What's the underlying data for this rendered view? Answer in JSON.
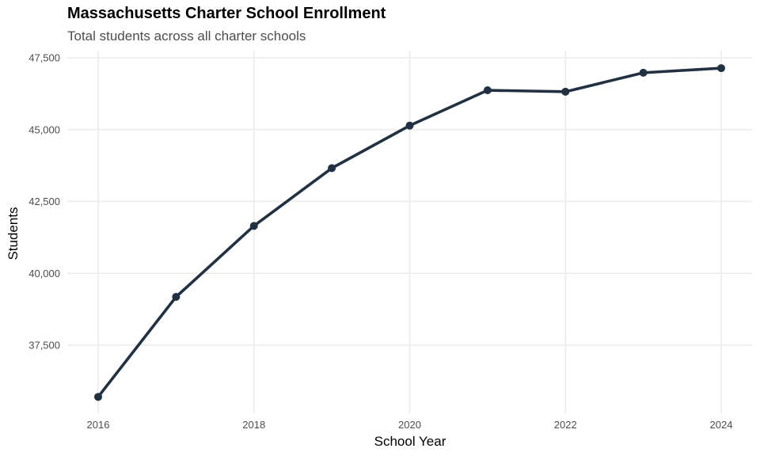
{
  "chart_data": {
    "type": "line",
    "title": "Massachusetts Charter School Enrollment",
    "subtitle": "Total students across all charter schools",
    "xlabel": "School Year",
    "ylabel": "Students",
    "x": [
      2016,
      2017,
      2018,
      2019,
      2020,
      2021,
      2022,
      2023,
      2024
    ],
    "series": [
      {
        "name": "Students",
        "values": [
          35700,
          39180,
          41650,
          43660,
          45140,
          46370,
          46320,
          46980,
          47140
        ],
        "color": "#223142"
      }
    ],
    "xlim": [
      2016,
      2024
    ],
    "ylim": [
      35700,
      47500
    ],
    "x_ticks": [
      2016,
      2018,
      2020,
      2022,
      2024
    ],
    "x_tick_labels": [
      "2016",
      "2018",
      "2020",
      "2022",
      "2024"
    ],
    "y_ticks": [
      37500,
      40000,
      42500,
      45000,
      47500
    ],
    "y_tick_labels": [
      "37,500",
      "40,000",
      "42,500",
      "45,000",
      "47,500"
    ],
    "grid": true,
    "legend": "none",
    "grid_color": "#ebebeb"
  }
}
